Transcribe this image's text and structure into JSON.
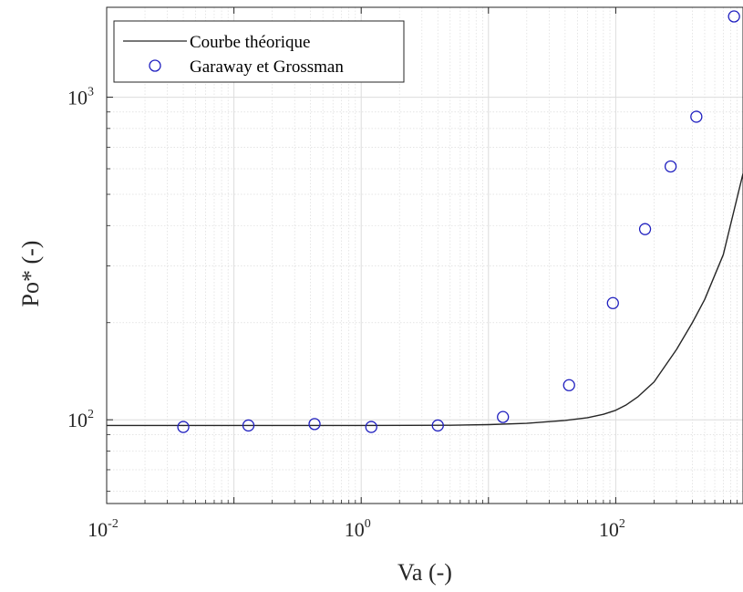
{
  "chart_data": {
    "type": "scatter",
    "title": "",
    "xlabel": "Va (-)",
    "ylabel": "Po* (-)",
    "xscale": "log",
    "yscale": "log",
    "xlim": [
      0.01,
      1000
    ],
    "ylim": [
      55,
      1900
    ],
    "grid": true,
    "minor_grid": true,
    "legend_position": "top-left",
    "x_ticks": [
      {
        "base": "10",
        "exp": "-2",
        "value": 0.01
      },
      {
        "base": "10",
        "exp": "0",
        "value": 1
      },
      {
        "base": "10",
        "exp": "2",
        "value": 100
      }
    ],
    "y_ticks": [
      {
        "base": "10",
        "exp": "2",
        "value": 100
      },
      {
        "base": "10",
        "exp": "3",
        "value": 1000
      }
    ],
    "series": [
      {
        "name": "Courbe théorique",
        "kind": "line",
        "color": "#262626",
        "x": [
          0.01,
          0.1,
          1,
          5,
          10,
          20,
          40,
          60,
          80,
          100,
          120,
          150,
          200,
          300,
          400,
          500,
          700,
          1000
        ],
        "y": [
          96,
          96,
          96,
          96.2,
          96.6,
          97.5,
          99.5,
          101.5,
          104,
          107,
          111,
          118,
          131,
          165,
          200,
          236,
          325,
          580
        ]
      },
      {
        "name": "Garaway et Grossman",
        "kind": "scatter",
        "marker": "circle",
        "color": "#1f1fbf",
        "x": [
          0.04,
          0.13,
          0.43,
          1.2,
          4,
          13,
          43,
          95,
          170,
          270,
          430,
          850
        ],
        "y": [
          95,
          96,
          97,
          95,
          96,
          102,
          128,
          230,
          390,
          610,
          870,
          1780
        ]
      }
    ]
  }
}
